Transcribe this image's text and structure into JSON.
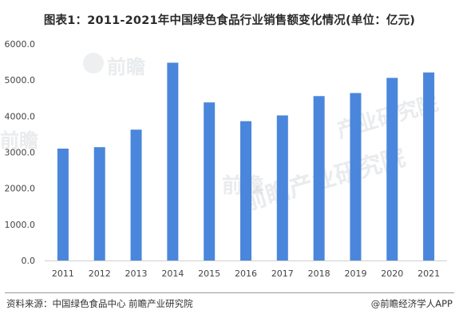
{
  "header": {
    "title": "图表1：2011-2021年中国绿色食品行业销售额变化情况(单位：亿元)"
  },
  "footer": {
    "source": "资料来源：中国绿色食品中心 前瞻产业研究院",
    "brand": "@前瞻经济学人APP"
  },
  "watermark": {
    "text_1": "前瞻",
    "text_2": "前瞻产业研究院",
    "text_3": "产业研究院",
    "text_4": "前瞻",
    "text_5": "前瞻"
  },
  "colors": {
    "bar": "#4a86db",
    "axis": "#d0d0d0",
    "tick_text": "#444444"
  },
  "chart_data": {
    "type": "bar",
    "title": "图表1：2011-2021年中国绿色食品行业销售额变化情况(单位：亿元)",
    "xlabel": "",
    "ylabel": "",
    "categories": [
      "2011",
      "2012",
      "2013",
      "2014",
      "2015",
      "2016",
      "2017",
      "2018",
      "2019",
      "2020",
      "2021"
    ],
    "values": [
      3100,
      3140,
      3625,
      5480,
      4380,
      3860,
      4020,
      4555,
      4640,
      5060,
      5210
    ],
    "ylim": [
      0,
      6000
    ],
    "yticks": [
      "0.0",
      "1000.0",
      "2000.0",
      "3000.0",
      "4000.0",
      "5000.0",
      "6000.0"
    ],
    "grid": false,
    "legend": "none"
  }
}
